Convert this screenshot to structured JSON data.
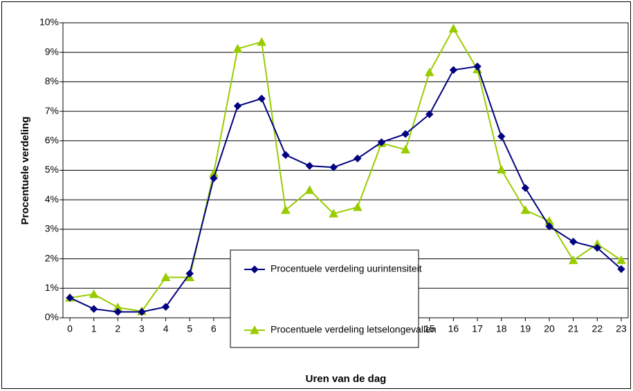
{
  "chart_data": {
    "type": "line",
    "x_label": "Uren van de dag",
    "y_label": "Procentuele verdeling",
    "categories": [
      "0",
      "1",
      "2",
      "3",
      "4",
      "5",
      "6",
      "7",
      "8",
      "9",
      "10",
      "11",
      "12",
      "13",
      "14",
      "15",
      "16",
      "17",
      "18",
      "19",
      "20",
      "21",
      "22",
      "23"
    ],
    "series": [
      {
        "name": "Procentuele verdeling uurintensiteit",
        "color": "#000080",
        "marker": "diamond",
        "values": [
          0.68,
          0.3,
          0.2,
          0.2,
          0.37,
          1.5,
          4.73,
          7.18,
          7.43,
          5.52,
          5.15,
          5.1,
          5.4,
          5.95,
          6.23,
          6.9,
          8.4,
          8.52,
          6.15,
          4.4,
          3.1,
          2.58,
          2.37,
          1.65
        ]
      },
      {
        "name": "Procentuele verdeling letselongevallen",
        "color": "#99cc00",
        "marker": "triangle",
        "values": [
          0.68,
          0.8,
          0.35,
          0.22,
          1.37,
          1.37,
          4.9,
          9.12,
          9.35,
          3.65,
          4.33,
          3.53,
          3.75,
          5.92,
          5.7,
          8.32,
          9.8,
          8.42,
          5.02,
          3.65,
          3.28,
          1.95,
          2.5,
          1.95
        ]
      }
    ],
    "ylim": [
      0,
      10
    ],
    "yticks": [
      {
        "value": 0,
        "label": "0%"
      },
      {
        "value": 1,
        "label": "1%"
      },
      {
        "value": 2,
        "label": "2%"
      },
      {
        "value": 3,
        "label": "3%"
      },
      {
        "value": 4,
        "label": "4%"
      },
      {
        "value": 5,
        "label": "5%"
      },
      {
        "value": 6,
        "label": "6%"
      },
      {
        "value": 7,
        "label": "7%"
      },
      {
        "value": 8,
        "label": "8%"
      },
      {
        "value": 9,
        "label": "9%"
      },
      {
        "value": 10,
        "label": "10%"
      }
    ],
    "grid": true
  }
}
